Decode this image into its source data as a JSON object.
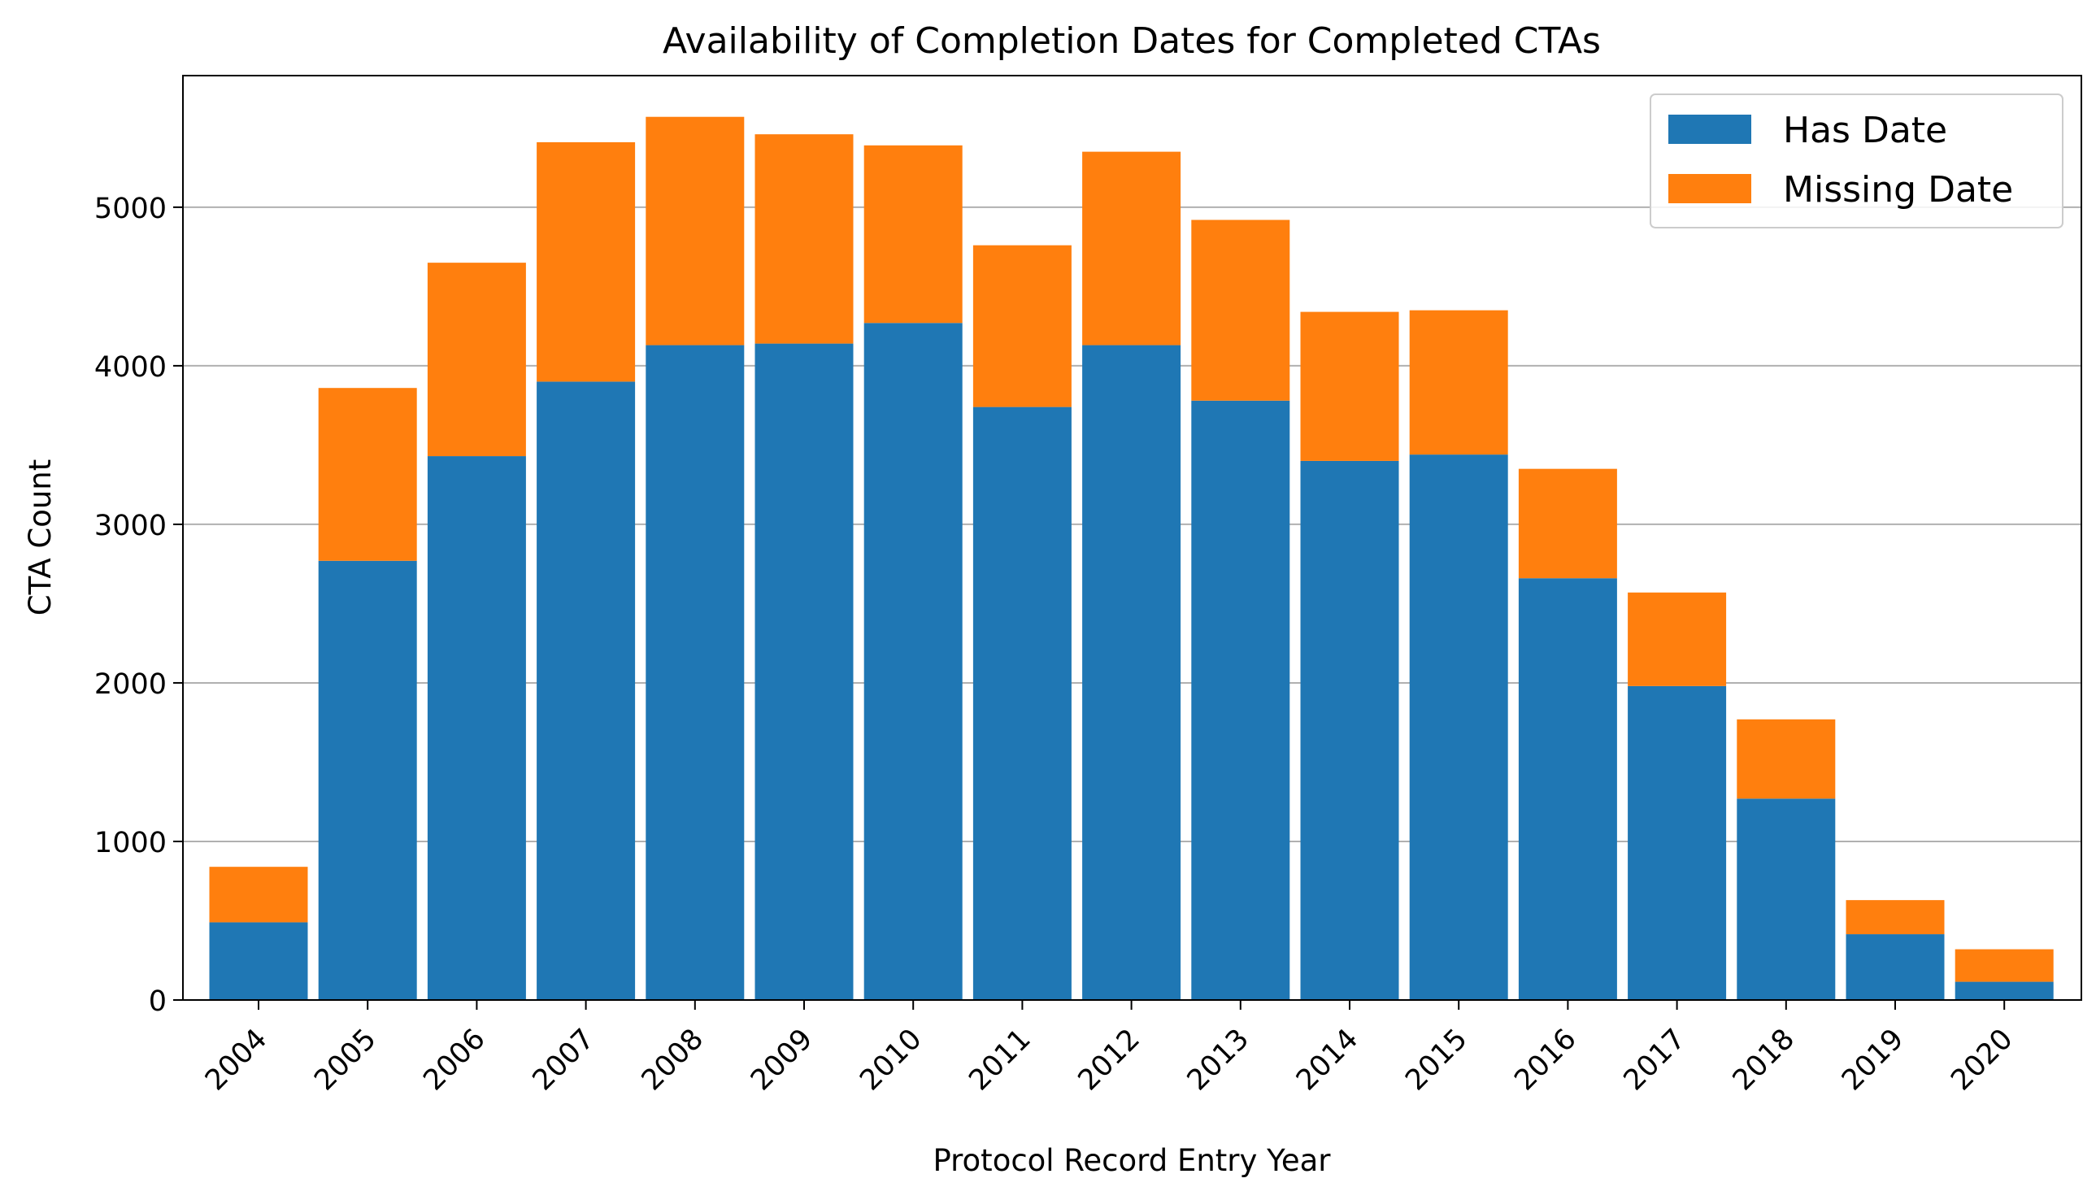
{
  "chart_data": {
    "type": "bar",
    "stacked": true,
    "title": "Availability of Completion Dates for Completed CTAs",
    "xlabel": "Protocol Record Entry Year",
    "ylabel": "CTA Count",
    "ylim": [
      0,
      5830
    ],
    "yticks": [
      0,
      1000,
      2000,
      3000,
      4000,
      5000
    ],
    "y_gridlines": true,
    "legend_position": "top-right",
    "categories": [
      "2004",
      "2005",
      "2006",
      "2007",
      "2008",
      "2009",
      "2010",
      "2011",
      "2012",
      "2013",
      "2014",
      "2015",
      "2016",
      "2017",
      "2018",
      "2019",
      "2020"
    ],
    "series": [
      {
        "name": "Has Date",
        "color": "#1f77b4",
        "values": [
          490,
          2770,
          3430,
          3900,
          4130,
          4140,
          4270,
          3740,
          4130,
          3780,
          3400,
          3440,
          2660,
          1980,
          1270,
          415,
          115
        ]
      },
      {
        "name": "Missing Date",
        "color": "#ff7f0e",
        "values": [
          350,
          1090,
          1220,
          1510,
          1440,
          1320,
          1120,
          1020,
          1220,
          1140,
          940,
          910,
          690,
          590,
          500,
          215,
          205
        ]
      }
    ]
  }
}
